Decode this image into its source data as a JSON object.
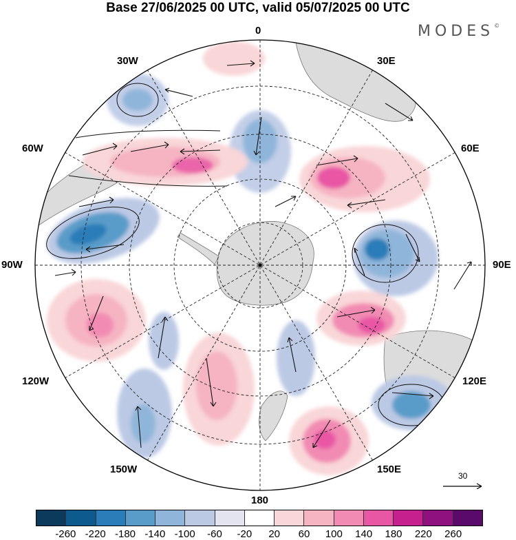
{
  "title": "Base 27/06/2025 00 UTC, valid 05/07/2025 00 UTC",
  "brand": "MODES",
  "brand_mark": "©",
  "longitude_labels": {
    "lon_0": "0",
    "lon_30e": "30E",
    "lon_60e": "60E",
    "lon_90e": "90E",
    "lon_120e": "120E",
    "lon_150e": "150E",
    "lon_180": "180",
    "lon_150w": "150W",
    "lon_120w": "120W",
    "lon_90w": "90W",
    "lon_60w": "60W",
    "lon_30w": "30W"
  },
  "reference_vector": {
    "label": "30"
  },
  "colorbar": {
    "ticks": [
      "-260",
      "-220",
      "-180",
      "-140",
      "-100",
      "-60",
      "-20",
      "20",
      "60",
      "100",
      "140",
      "180",
      "220",
      "260"
    ],
    "colors": [
      "#0b3a5c",
      "#0d5a8f",
      "#2a7db8",
      "#5a9cc9",
      "#8fb6da",
      "#bcc9e5",
      "#e4e4f1",
      "#ffffff",
      "#f9d6d8",
      "#f6b4c2",
      "#f28bb3",
      "#e857a4",
      "#c61f8e",
      "#8e117f",
      "#5a0a6b"
    ]
  }
}
